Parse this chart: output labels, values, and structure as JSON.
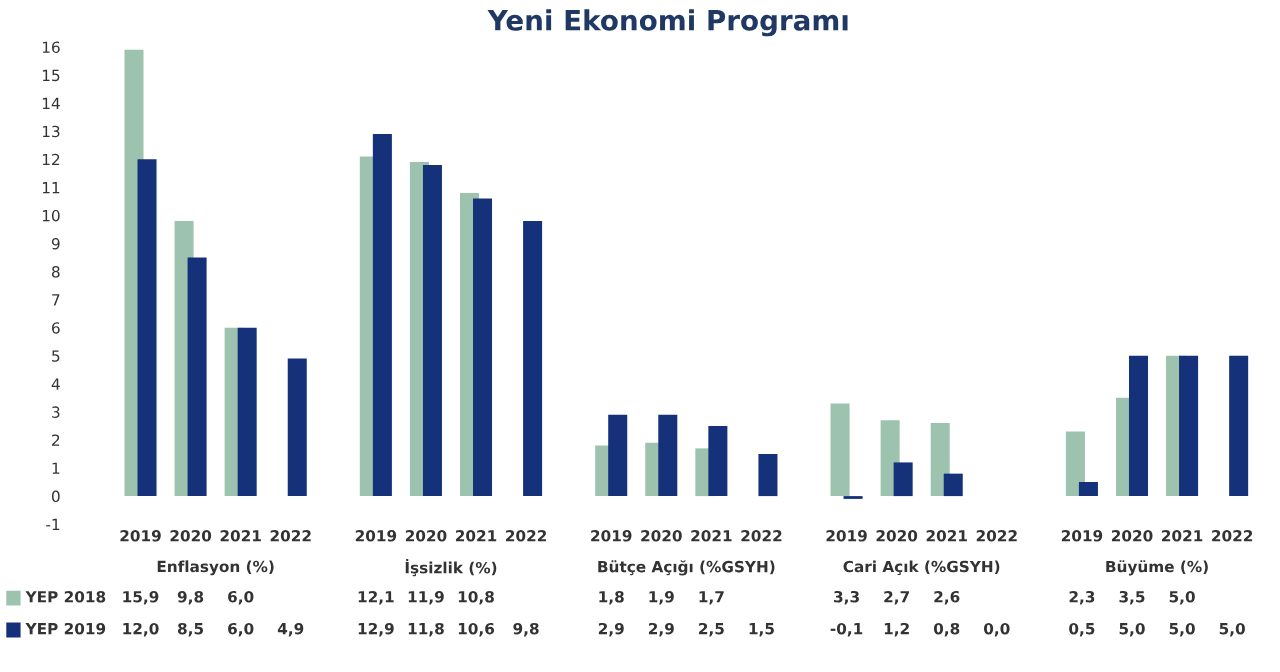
{
  "chart_data": {
    "type": "bar",
    "title": "Yeni Ekonomi Programı",
    "categories": [
      "2019",
      "2020",
      "2021",
      "2022",
      "2019",
      "2020",
      "2021",
      "2022",
      "2019",
      "2020",
      "2021",
      "2022",
      "2019",
      "2020",
      "2021",
      "2022",
      "2019",
      "2020",
      "2021",
      "2022"
    ],
    "annotations": [
      "Enflasyon (%)",
      "İşsizlik (%)",
      "Bütçe Açığı (%GSYH)",
      "Cari Açık (%GSYH)",
      "Büyüme (%)"
    ],
    "series": [
      {
        "name": "YEP 2018",
        "color": "#9dc3ae",
        "values": [
          15.9,
          9.8,
          6.0,
          null,
          12.1,
          11.9,
          10.8,
          null,
          1.8,
          1.9,
          1.7,
          null,
          3.3,
          2.7,
          2.6,
          null,
          2.3,
          3.5,
          5.0,
          null
        ],
        "value_labels": [
          "15,9",
          "9,8",
          "6,0",
          null,
          "12,1",
          "11,9",
          "10,8",
          null,
          "1,8",
          "1,9",
          "1,7",
          null,
          "3,3",
          "2,7",
          "2,6",
          null,
          "2,3",
          "3,5",
          "5,0",
          null
        ]
      },
      {
        "name": "YEP 2019",
        "color": "#14317a",
        "values": [
          12.0,
          8.5,
          6.0,
          4.9,
          12.9,
          11.8,
          10.6,
          9.8,
          2.9,
          2.9,
          2.5,
          1.5,
          -0.1,
          1.2,
          0.8,
          0.0,
          0.5,
          5.0,
          5.0,
          5.0
        ],
        "value_labels": [
          "12,0",
          "8,5",
          "6,0",
          "4,9",
          "12,9",
          "11,8",
          "10,6",
          "9,8",
          "2,9",
          "2,9",
          "2,5",
          "1,5",
          "-0,1",
          "1,2",
          "0,8",
          "0,0",
          "0,5",
          "5,0",
          "5,0",
          "5,0"
        ]
      }
    ],
    "ylim": [
      -1,
      16
    ],
    "yticks": [
      -1,
      0,
      1,
      2,
      3,
      4,
      5,
      6,
      7,
      8,
      9,
      10,
      11,
      12,
      13,
      14,
      15,
      16
    ],
    "grid": false,
    "legend": "bottom"
  }
}
